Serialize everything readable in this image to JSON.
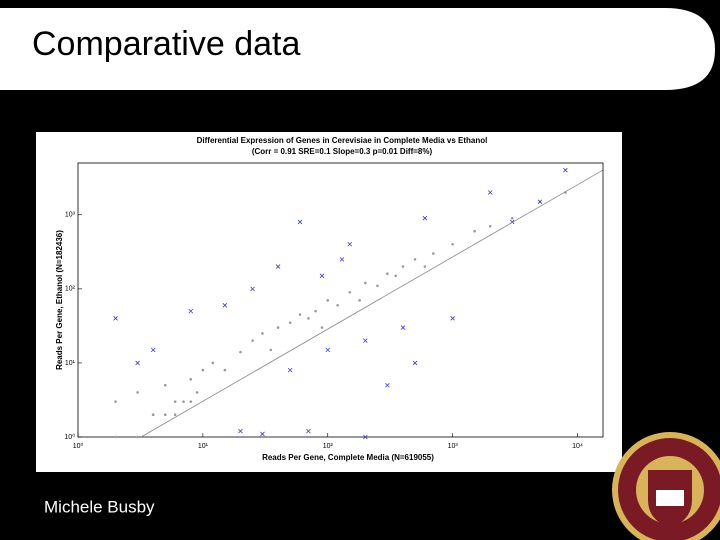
{
  "slide_title": "Comparative data",
  "author": "Michele Busby",
  "chart_data": {
    "type": "scatter",
    "title": "Differential Expression of Genes in Cerevisiae in Complete Media vs Ethanol",
    "subtitle": "(Corr = 0.91 SRE=0.1 Slope=0.3 p=0.01 Diff=8%)",
    "xlabel": "Reads Per Gene, Complete Media (N=619055)",
    "ylabel": "Reads Per Gene, Ethanol (N=182436)",
    "xscale": "log",
    "yscale": "log",
    "grid": false,
    "xlim": [
      1,
      16000
    ],
    "ylim": [
      1,
      5000
    ],
    "xticks": [
      {
        "value": 1,
        "label": "10⁰"
      },
      {
        "value": 10,
        "label": "10¹"
      },
      {
        "value": 100,
        "label": "10²"
      },
      {
        "value": 1000,
        "label": "10³"
      },
      {
        "value": 10000,
        "label": "10⁴"
      }
    ],
    "yticks": [
      {
        "value": 1,
        "label": "10⁰"
      },
      {
        "value": 10,
        "label": "10¹"
      },
      {
        "value": 100,
        "label": "10²"
      },
      {
        "value": 1000,
        "label": "10³"
      }
    ],
    "series": [
      {
        "color": "#9a9a9a",
        "marker": "dot",
        "x": [
          2,
          3,
          5,
          8,
          10,
          12,
          20,
          25,
          30,
          40,
          50,
          60,
          80,
          100,
          120,
          150,
          200,
          250,
          300,
          400,
          500,
          700,
          1000,
          1500,
          2000,
          3000,
          5000,
          8000,
          4,
          6,
          15,
          35,
          70,
          90,
          180,
          350,
          600,
          2,
          3,
          4,
          5,
          6,
          7,
          8,
          9
        ],
        "y": [
          3,
          4,
          5,
          6,
          8,
          10,
          14,
          20,
          25,
          30,
          35,
          45,
          50,
          70,
          60,
          90,
          120,
          110,
          160,
          200,
          250,
          300,
          400,
          600,
          700,
          900,
          1500,
          2000,
          2,
          3,
          8,
          15,
          40,
          30,
          70,
          150,
          200,
          1,
          1,
          2,
          2,
          2,
          3,
          3,
          4
        ]
      },
      {
        "color": "#3a3ad0",
        "marker": "x",
        "x": [
          3,
          2,
          4,
          8,
          15,
          25,
          40,
          50,
          60,
          100,
          150,
          200,
          400,
          600,
          1000,
          2000,
          3000,
          5000,
          8000,
          20,
          30,
          70,
          90,
          130,
          200,
          300,
          500
        ],
        "y": [
          10,
          40,
          15,
          50,
          60,
          100,
          200,
          8,
          800,
          15,
          400,
          20,
          30,
          900,
          40,
          2000,
          800,
          1500,
          4000,
          1.2,
          1.1,
          1.2,
          150,
          250,
          1,
          5,
          10
        ]
      },
      {
        "color": "#888888",
        "marker": "line",
        "x": [
          3.2,
          15849
        ],
        "y": [
          1,
          3981
        ]
      }
    ]
  }
}
